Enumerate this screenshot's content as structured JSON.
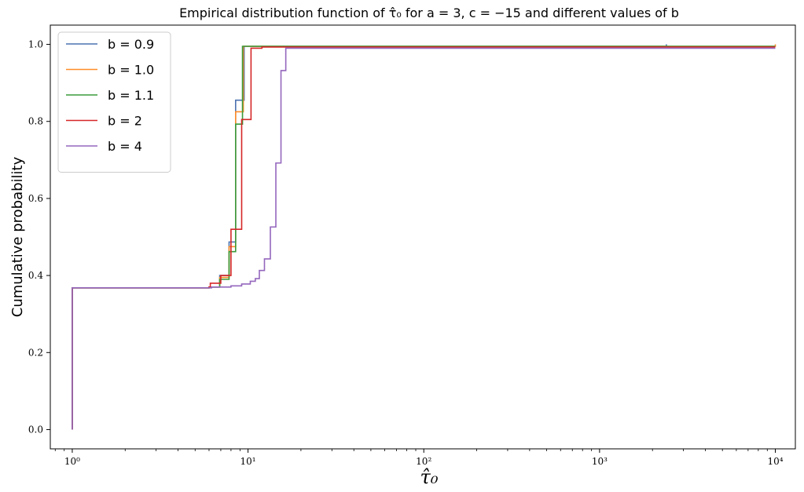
{
  "chart_data": {
    "type": "line",
    "title": "Empirical distribution function of τ̂₀ for a = 3, c = −15 and different values of b",
    "xlabel": "τ̂₀",
    "ylabel": "Cumulative probability",
    "xscale": "log",
    "xlim": [
      0.75,
      13000
    ],
    "ylim": [
      -0.05,
      1.05
    ],
    "x_ticks": [
      1,
      10,
      100,
      1000,
      10000
    ],
    "x_tick_labels": [
      "10⁰",
      "10¹",
      "10²",
      "10³",
      "10⁴"
    ],
    "y_ticks": [
      0.0,
      0.2,
      0.4,
      0.6,
      0.8,
      1.0
    ],
    "y_tick_labels": [
      "0.0",
      "0.2",
      "0.4",
      "0.6",
      "0.8",
      "1.0"
    ],
    "grid": false,
    "legend_position": "top-left",
    "series": [
      {
        "name": "b = 0.9",
        "color": "#4c72b0",
        "steps": [
          [
            1,
            0
          ],
          [
            1,
            0.368
          ],
          [
            6,
            0.37
          ],
          [
            6.9,
            0.4
          ],
          [
            7.8,
            0.487
          ],
          [
            8.5,
            0.855
          ],
          [
            9.5,
            0.995
          ],
          [
            2400,
            1.0
          ]
        ]
      },
      {
        "name": "b = 1.0",
        "color": "#ff8c28",
        "steps": [
          [
            1,
            0
          ],
          [
            1,
            0.368
          ],
          [
            6,
            0.37
          ],
          [
            6.9,
            0.395
          ],
          [
            7.8,
            0.475
          ],
          [
            8.5,
            0.825
          ],
          [
            9.4,
            0.995
          ],
          [
            10000,
            1.0
          ]
        ]
      },
      {
        "name": "b = 1.1",
        "color": "#3a9a3a",
        "steps": [
          [
            1,
            0
          ],
          [
            1,
            0.368
          ],
          [
            6,
            0.37
          ],
          [
            6.9,
            0.39
          ],
          [
            7.8,
            0.462
          ],
          [
            8.5,
            0.793
          ],
          [
            9.3,
            0.995
          ],
          [
            10000,
            0.995
          ]
        ]
      },
      {
        "name": "b = 2",
        "color": "#d62728",
        "steps": [
          [
            1,
            0
          ],
          [
            1,
            0.368
          ],
          [
            6,
            0.37
          ],
          [
            6.1,
            0.38
          ],
          [
            7.0,
            0.4
          ],
          [
            8.0,
            0.52
          ],
          [
            9.2,
            0.805
          ],
          [
            10.4,
            0.99
          ],
          [
            12,
            0.993
          ],
          [
            10000,
            0.993
          ]
        ]
      },
      {
        "name": "b = 4",
        "color": "#9467bd",
        "steps": [
          [
            1,
            0
          ],
          [
            1,
            0.368
          ],
          [
            6.2,
            0.37
          ],
          [
            8.0,
            0.373
          ],
          [
            9.2,
            0.378
          ],
          [
            10.3,
            0.385
          ],
          [
            11.0,
            0.392
          ],
          [
            11.6,
            0.413
          ],
          [
            12.4,
            0.443
          ],
          [
            13.4,
            0.526
          ],
          [
            14.4,
            0.692
          ],
          [
            15.4,
            0.932
          ],
          [
            16.4,
            0.99
          ],
          [
            10000,
            0.99
          ]
        ]
      }
    ]
  }
}
